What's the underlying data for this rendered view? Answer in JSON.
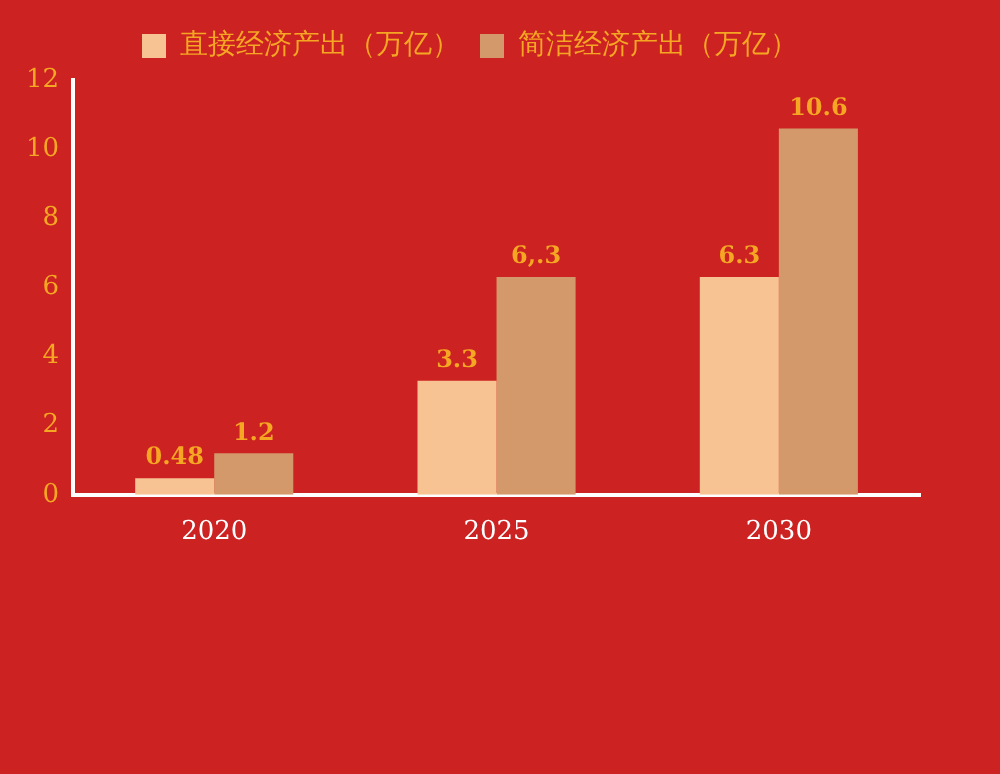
{
  "chart_data": {
    "type": "bar",
    "categories": [
      "2020",
      "2025",
      "2030"
    ],
    "series": [
      {
        "name": "直接经济产出（万亿）",
        "color": "#f7c393",
        "values": [
          0.48,
          3.3,
          6.3
        ],
        "value_labels": [
          "0.48",
          "3.3",
          "6.3"
        ]
      },
      {
        "name": "简洁经济产出（万亿）",
        "color": "#d4996a",
        "values": [
          1.2,
          6.3,
          10.6
        ],
        "value_labels": [
          "1.2",
          "6,.3",
          "10.6"
        ]
      }
    ],
    "ylim": [
      0,
      12
    ],
    "yticks": [
      0,
      2,
      4,
      6,
      8,
      10,
      12
    ],
    "grid": false,
    "legend": "top"
  }
}
